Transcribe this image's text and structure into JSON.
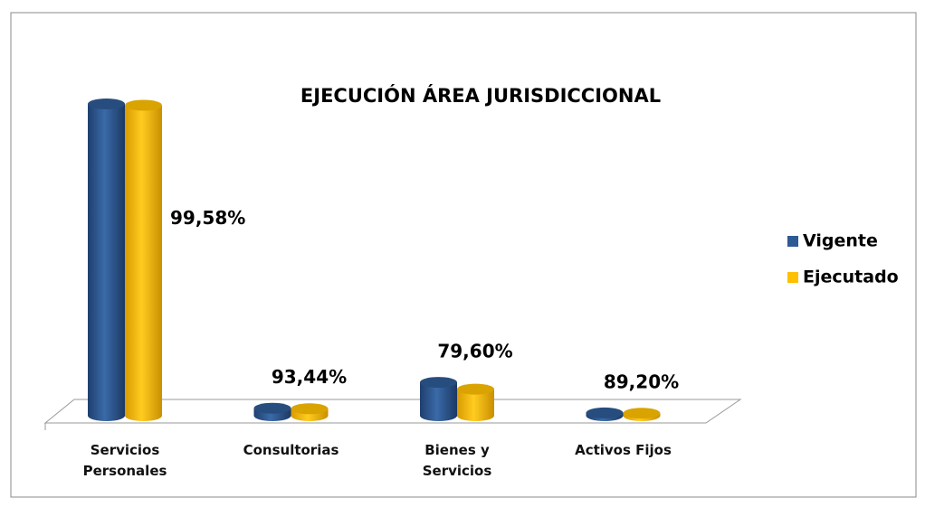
{
  "chart_data": {
    "type": "bar3d",
    "title": "EJECUCIÓN ÁREA JURISDICCIONAL",
    "categories": [
      "Servicios Personales",
      "Consultorias",
      "Bienes y Servicios",
      "Activos Fijos"
    ],
    "series": [
      {
        "name": "Vigente",
        "color": "#2e5a94",
        "values": [
          100,
          2.4,
          10.7,
          0.9
        ]
      },
      {
        "name": "Ejecutado",
        "color": "#ffc000",
        "values": [
          99.58,
          2.24,
          8.52,
          0.8
        ]
      }
    ],
    "percentages": [
      99.58,
      93.44,
      79.6,
      89.2
    ],
    "percentage_labels": [
      "99,58%",
      "93,44%",
      "79,60%",
      "89,20%"
    ],
    "ylim": [
      0,
      100
    ],
    "legend": "right"
  }
}
